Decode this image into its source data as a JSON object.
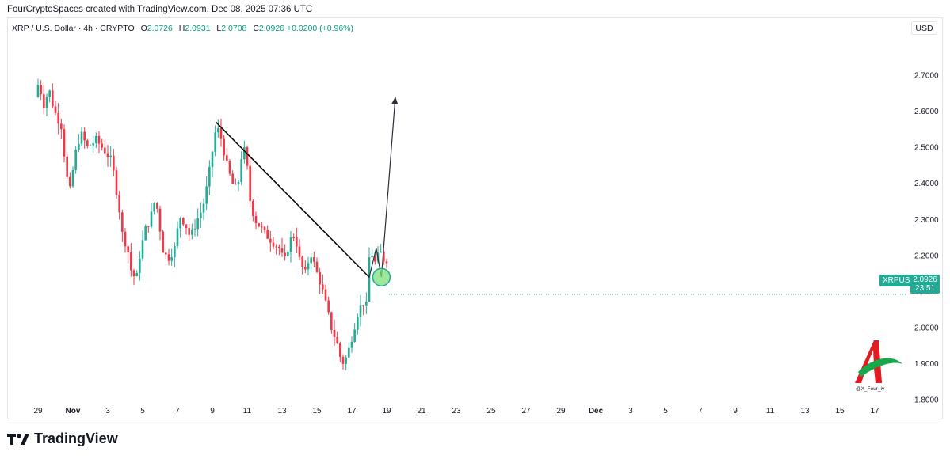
{
  "header": {
    "credit": "FourCryptoSpaces created with TradingView.com, Dec 08, 2025 07:36 UTC"
  },
  "legend": {
    "symbol": "XRP / U.S. Dollar · 4h · CRYPTO",
    "open_label": "O",
    "open": "2.0726",
    "high_label": "H",
    "high": "2.0931",
    "low_label": "L",
    "low": "2.0708",
    "close_label": "C",
    "close": "2.0926",
    "change": "+0.0200 (+0.96%)"
  },
  "currency_button": "USD",
  "price_tag": {
    "symbol": "XRPUSD",
    "price": "2.0926",
    "countdown": "23:51"
  },
  "footer": {
    "brand": "TradingView"
  },
  "watermark": {
    "handle": "@X_Four_iv"
  },
  "colors": {
    "up": "#22ab94",
    "down": "#f23645",
    "trendline": "#000000",
    "projection": "#2a2e39",
    "target_circle": "#7ee07e",
    "grid_text": "#131722",
    "axis_border": "#e0e3eb"
  },
  "chart_data": {
    "type": "candlestick",
    "title": "XRP / U.S. Dollar · 4h · CRYPTO",
    "y_axis": {
      "ticks": [
        1.8,
        1.9,
        2.0,
        2.1,
        2.2,
        2.3,
        2.4,
        2.5,
        2.6,
        2.7
      ],
      "tick_labels": [
        "1.8000",
        "1.9000",
        "2.0000",
        "2.1000",
        "2.2000",
        "2.3000",
        "2.4000",
        "2.5000",
        "2.6000",
        "2.7000"
      ],
      "range": [
        1.75,
        2.86
      ]
    },
    "x_axis": {
      "tick_labels": [
        "29",
        "Nov",
        "3",
        "5",
        "7",
        "9",
        "11",
        "13",
        "15",
        "17",
        "19",
        "21",
        "23",
        "25",
        "27",
        "29",
        "Dec",
        "3",
        "5",
        "7",
        "9",
        "11",
        "13",
        "15",
        "17"
      ],
      "bold_labels": [
        "Nov",
        "Dec"
      ],
      "start_day": 28,
      "day_span": [
        28.0,
        48.0
      ]
    },
    "price_path": [
      [
        28.0,
        2.64
      ],
      [
        28.2,
        2.68
      ],
      [
        28.5,
        2.62
      ],
      [
        28.8,
        2.66
      ],
      [
        29.1,
        2.6
      ],
      [
        29.5,
        2.56
      ],
      [
        29.8,
        2.42
      ],
      [
        30.0,
        2.38
      ],
      [
        30.3,
        2.48
      ],
      [
        30.6,
        2.54
      ],
      [
        31.0,
        2.5
      ],
      [
        31.5,
        2.52
      ],
      [
        32.0,
        2.49
      ],
      [
        32.4,
        2.46
      ],
      [
        32.8,
        2.34
      ],
      [
        33.0,
        2.26
      ],
      [
        33.3,
        2.22
      ],
      [
        33.5,
        2.16
      ],
      [
        33.8,
        2.13
      ],
      [
        34.0,
        2.2
      ],
      [
        34.3,
        2.27
      ],
      [
        34.6,
        2.3
      ],
      [
        34.9,
        2.36
      ],
      [
        35.1,
        2.3
      ],
      [
        35.3,
        2.22
      ],
      [
        35.6,
        2.19
      ],
      [
        36.0,
        2.22
      ],
      [
        36.3,
        2.31
      ],
      [
        36.6,
        2.29
      ],
      [
        36.9,
        2.25
      ],
      [
        37.3,
        2.3
      ],
      [
        37.6,
        2.33
      ],
      [
        37.9,
        2.4
      ],
      [
        38.2,
        2.5
      ],
      [
        38.4,
        2.56
      ],
      [
        38.7,
        2.52
      ],
      [
        39.0,
        2.45
      ],
      [
        39.3,
        2.4
      ],
      [
        39.6,
        2.38
      ],
      [
        39.9,
        2.5
      ],
      [
        40.1,
        2.48
      ],
      [
        40.3,
        2.36
      ],
      [
        40.6,
        2.3
      ],
      [
        40.9,
        2.28
      ],
      [
        41.2,
        2.26
      ],
      [
        41.6,
        2.24
      ],
      [
        42.0,
        2.22
      ],
      [
        42.3,
        2.18
      ],
      [
        42.6,
        2.24
      ],
      [
        42.9,
        2.26
      ],
      [
        43.2,
        2.18
      ],
      [
        43.5,
        2.15
      ],
      [
        43.8,
        2.21
      ],
      [
        44.1,
        2.16
      ],
      [
        44.4,
        2.12
      ],
      [
        44.7,
        2.06
      ],
      [
        45.0,
        2.0
      ],
      [
        45.3,
        1.96
      ],
      [
        45.6,
        1.9
      ],
      [
        45.9,
        1.92
      ],
      [
        46.2,
        1.98
      ],
      [
        46.5,
        2.04
      ],
      [
        46.8,
        2.07
      ],
      [
        47.0,
        2.06
      ],
      [
        47.2,
        2.22
      ],
      [
        47.5,
        2.18
      ],
      [
        47.8,
        2.21
      ],
      [
        48.0,
        2.19
      ]
    ],
    "trendline": {
      "from": [
        38.2,
        2.57
      ],
      "to": [
        47.0,
        2.14
      ]
    },
    "projection": [
      [
        47.0,
        2.14
      ],
      [
        47.4,
        2.22
      ],
      [
        47.7,
        2.14
      ],
      [
        48.5,
        2.64
      ]
    ],
    "target": {
      "x": 47.7,
      "y": 2.14
    },
    "last_price": 2.0926
  }
}
